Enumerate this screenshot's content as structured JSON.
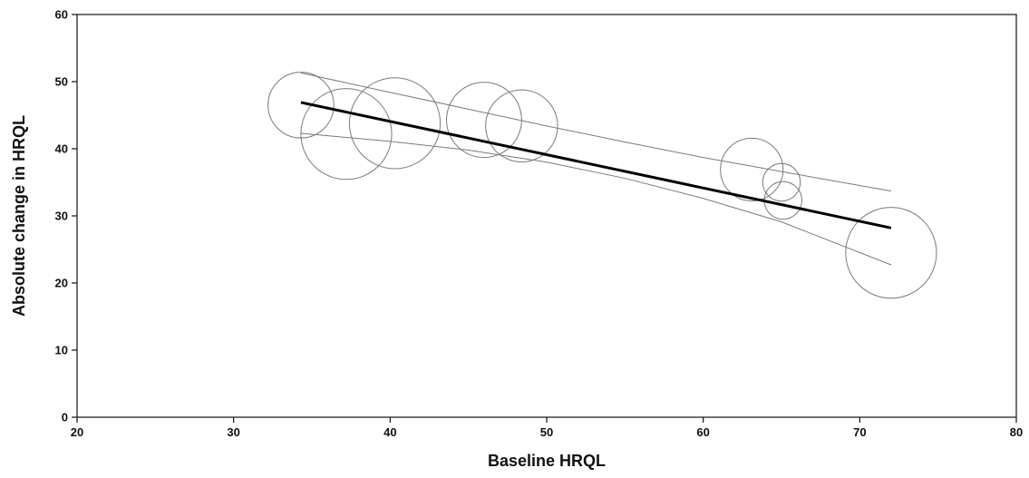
{
  "chart_data": {
    "type": "scatter",
    "title": "",
    "xlabel": "Baseline HRQL",
    "ylabel": "Absolute change in HRQL",
    "xlim": [
      20,
      80
    ],
    "ylim": [
      0,
      60
    ],
    "xticks": [
      20,
      30,
      40,
      50,
      60,
      70,
      80
    ],
    "yticks": [
      0,
      10,
      20,
      30,
      40,
      50,
      60
    ],
    "grid": false,
    "legend": "none",
    "points": [
      {
        "x": 34.3,
        "y": 46.5,
        "bubble_radius_x": 2.1
      },
      {
        "x": 37.2,
        "y": 42.2,
        "bubble_radius_x": 2.9
      },
      {
        "x": 40.3,
        "y": 43.8,
        "bubble_radius_x": 2.9
      },
      {
        "x": 46.0,
        "y": 44.3,
        "bubble_radius_x": 2.4
      },
      {
        "x": 48.4,
        "y": 43.4,
        "bubble_radius_x": 2.3
      },
      {
        "x": 63.1,
        "y": 36.9,
        "bubble_radius_x": 2.0
      },
      {
        "x": 65.0,
        "y": 35.0,
        "bubble_radius_x": 1.2
      },
      {
        "x": 65.1,
        "y": 32.3,
        "bubble_radius_x": 1.2
      },
      {
        "x": 72.0,
        "y": 24.5,
        "bubble_radius_x": 2.9
      }
    ],
    "regression_line": {
      "x": [
        34.3,
        72.0
      ],
      "y": [
        46.9,
        28.2
      ]
    },
    "ci_upper": {
      "x": [
        34.3,
        40,
        45,
        50,
        55,
        60,
        65,
        72
      ],
      "y": [
        51.3,
        48.4,
        45.9,
        43.4,
        41.0,
        38.7,
        36.6,
        33.7
      ]
    },
    "ci_lower": {
      "x": [
        34.3,
        40,
        45,
        50,
        55,
        60,
        65,
        72
      ],
      "y": [
        42.3,
        41.1,
        39.8,
        38.0,
        35.6,
        32.6,
        29.1,
        22.7
      ]
    },
    "colors": {
      "axis": "#111111",
      "bubble": "#7a7a7a",
      "regression": "#000000",
      "ci": "#7a7a7a"
    }
  }
}
